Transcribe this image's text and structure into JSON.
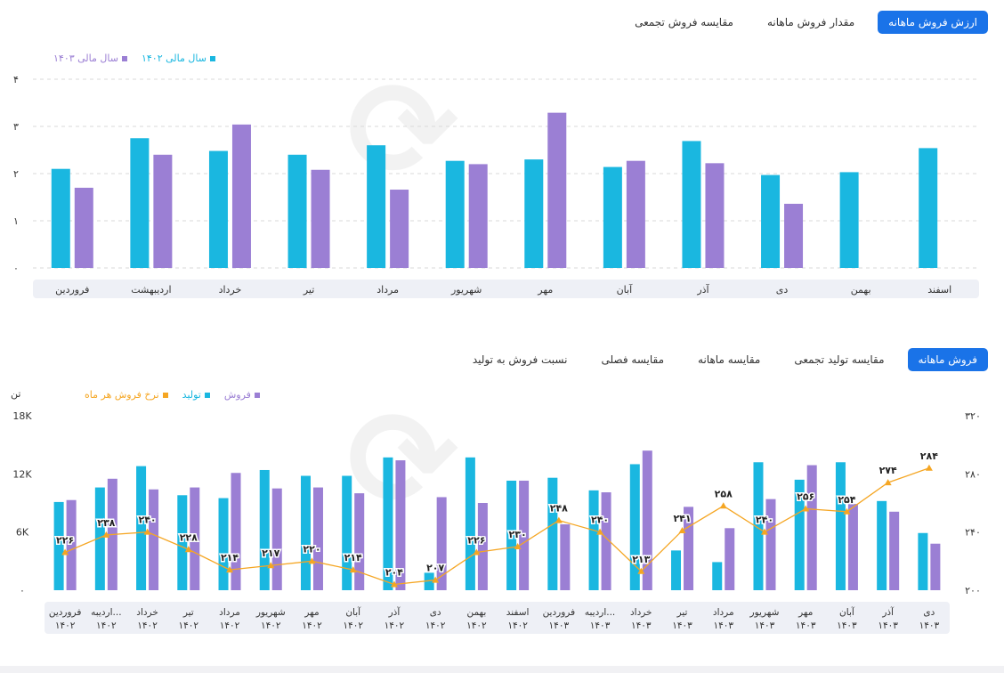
{
  "top_tabs": [
    "ارزش فروش ماهانه",
    "مقدار فروش ماهانه",
    "مقایسه فروش تجمعی"
  ],
  "bottom_tabs": [
    "فروش ماهانه",
    "مقایسه تولید تجمعی",
    "مقایسه ماهانه",
    "مقایسه فصلی",
    "نسبت فروش به تولید"
  ],
  "colors": {
    "cyan": "#1ab7e0",
    "purple": "#9b7fd4",
    "orange": "#f5a623",
    "accent": "#1a73e8"
  },
  "chart_data": [
    {
      "type": "bar",
      "legend": [
        "سال مالی ۱۴۰۲",
        "سال مالی ۱۴۰۳"
      ],
      "categories": [
        "فروردین",
        "اردیبهشت",
        "خرداد",
        "تیر",
        "مرداد",
        "شهریور",
        "مهر",
        "آبان",
        "آذر",
        "دی",
        "بهمن",
        "اسفند"
      ],
      "series": [
        {
          "name": "سال مالی ۱۴۰۲",
          "values": [
            2.1,
            2.75,
            2.48,
            2.4,
            2.6,
            2.27,
            2.3,
            2.14,
            2.69,
            1.97,
            2.03,
            2.54
          ]
        },
        {
          "name": "سال مالی ۱۴۰۳",
          "values": [
            1.7,
            2.4,
            3.04,
            2.08,
            1.66,
            2.2,
            3.29,
            2.27,
            2.22,
            1.36,
            null,
            null
          ]
        }
      ],
      "ylim": [
        0,
        4
      ],
      "yticks": [
        "۰",
        "۱",
        "۲",
        "۳",
        "۴"
      ]
    },
    {
      "type": "bar+line",
      "legend": [
        "فروش",
        "تولید",
        "نرخ فروش هر ماه"
      ],
      "left_unit": "تن",
      "categories": [
        [
          "فروردین",
          "۱۴۰۲"
        ],
        [
          "اردیبه...",
          "۱۴۰۲"
        ],
        [
          "خرداد",
          "۱۴۰۲"
        ],
        [
          "تیر",
          "۱۴۰۲"
        ],
        [
          "مرداد",
          "۱۴۰۲"
        ],
        [
          "شهریور",
          "۱۴۰۲"
        ],
        [
          "مهر",
          "۱۴۰۲"
        ],
        [
          "آبان",
          "۱۴۰۲"
        ],
        [
          "آذر",
          "۱۴۰۲"
        ],
        [
          "دی",
          "۱۴۰۲"
        ],
        [
          "بهمن",
          "۱۴۰۲"
        ],
        [
          "اسفند",
          "۱۴۰۲"
        ],
        [
          "فروردین",
          "۱۴۰۳"
        ],
        [
          "اردیبه...",
          "۱۴۰۳"
        ],
        [
          "خرداد",
          "۱۴۰۳"
        ],
        [
          "تیر",
          "۱۴۰۳"
        ],
        [
          "مرداد",
          "۱۴۰۳"
        ],
        [
          "شهریور",
          "۱۴۰۳"
        ],
        [
          "مهر",
          "۱۴۰۳"
        ],
        [
          "آبان",
          "۱۴۰۳"
        ],
        [
          "آذر",
          "۱۴۰۳"
        ],
        [
          "دی",
          "۱۴۰۳"
        ]
      ],
      "production": [
        9100,
        10600,
        12800,
        9800,
        9500,
        12400,
        11800,
        11800,
        13700,
        1800,
        13700,
        11300,
        11600,
        10300,
        13000,
        4100,
        2900,
        13200,
        11400,
        13200,
        9200,
        5900
      ],
      "sales": [
        9300,
        11500,
        10400,
        10600,
        12100,
        10500,
        10600,
        10000,
        13400,
        9600,
        9000,
        11300,
        6800,
        10100,
        14400,
        8600,
        6400,
        9400,
        12900,
        8900,
        8100,
        4800
      ],
      "rate": [
        226,
        238,
        240,
        228,
        214,
        217,
        220,
        214,
        204,
        207,
        226,
        230,
        248,
        240,
        213,
        241,
        258,
        240,
        256,
        254,
        274,
        284
      ],
      "rate_labels": [
        "۲۲۶",
        "۲۳۸",
        "۲۴۰",
        "۲۲۸",
        "۲۱۴",
        "۲۱۷",
        "۲۲۰",
        "۲۱۴",
        "۲۰۴",
        "۲۰۷",
        "۲۲۶",
        "۲۳۰",
        "۲۴۸",
        "۲۴۰",
        "۲۱۳",
        "۲۴۱",
        "۲۵۸",
        "۲۴۰",
        "۲۵۶",
        "۲۵۴",
        "۲۷۴",
        "۲۸۴"
      ],
      "ylim_left": [
        0,
        18000
      ],
      "yticks_left": [
        "۰",
        "6K",
        "12K",
        "18K"
      ],
      "ylim_right": [
        200,
        320
      ],
      "yticks_right": [
        "۲۰۰",
        "۲۴۰",
        "۲۸۰",
        "۳۲۰"
      ]
    }
  ]
}
